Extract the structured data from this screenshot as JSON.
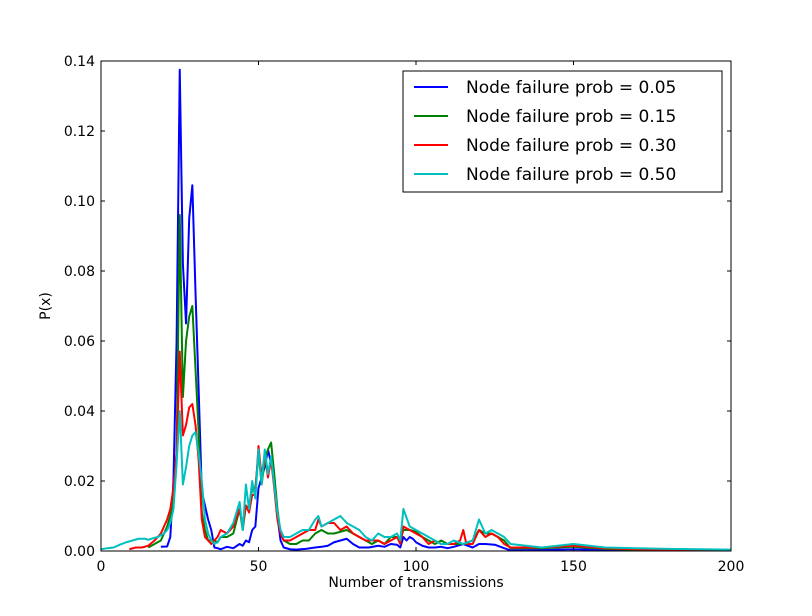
{
  "chart_data": {
    "type": "line",
    "title": "",
    "xlabel": "Number of transmissions",
    "ylabel": "P(x)",
    "xlim": [
      0,
      200
    ],
    "ylim": [
      0,
      0.14
    ],
    "xticks": [
      0,
      50,
      100,
      150,
      200
    ],
    "xtick_labels": [
      "0",
      "50",
      "100",
      "150",
      "200"
    ],
    "yticks": [
      0,
      0.02,
      0.04,
      0.06,
      0.08,
      0.1,
      0.12,
      0.14
    ],
    "ytick_labels": [
      "0.00",
      "0.02",
      "0.04",
      "0.06",
      "0.08",
      "0.10",
      "0.12",
      "0.14"
    ],
    "grid": false,
    "legend_position": "top-right",
    "series": [
      {
        "name": "Node failure prob = 0.05",
        "color": "#0000ff",
        "x": [
          19,
          21,
          22,
          23,
          24,
          25,
          26,
          27,
          28,
          29,
          30,
          31,
          32,
          33,
          34,
          35,
          36,
          37,
          38,
          40,
          42,
          44,
          45,
          46,
          47,
          48,
          49,
          50,
          51,
          52,
          53,
          54,
          55,
          56,
          57,
          58,
          60,
          62,
          65,
          68,
          70,
          72,
          74,
          76,
          78,
          80,
          82,
          85,
          88,
          90,
          92,
          94,
          95,
          96,
          97,
          98,
          99,
          100,
          102,
          104,
          106,
          108,
          110,
          112,
          115,
          118,
          120,
          122,
          125,
          128,
          130,
          140,
          150,
          160,
          170,
          180,
          190,
          200
        ],
        "values": [
          0.0012,
          0.0013,
          0.004,
          0.02,
          0.06,
          0.1375,
          0.082,
          0.065,
          0.095,
          0.1045,
          0.074,
          0.046,
          0.017,
          0.013,
          0.009,
          0.006,
          0.001,
          0.0008,
          0.0005,
          0.0012,
          0.0008,
          0.002,
          0.0015,
          0.003,
          0.0025,
          0.006,
          0.007,
          0.018,
          0.021,
          0.024,
          0.029,
          0.025,
          0.021,
          0.01,
          0.003,
          0.001,
          0.0005,
          0.0004,
          0.0006,
          0.001,
          0.0012,
          0.0015,
          0.0025,
          0.003,
          0.0035,
          0.002,
          0.001,
          0.001,
          0.0015,
          0.0012,
          0.002,
          0.0018,
          0.001,
          0.004,
          0.003,
          0.004,
          0.0035,
          0.0025,
          0.0015,
          0.001,
          0.001,
          0.0012,
          0.0008,
          0.0012,
          0.002,
          0.001,
          0.002,
          0.002,
          0.0018,
          0.0008,
          0.0002,
          0.0003,
          0.0005,
          0.0003,
          0.0003,
          0.0002,
          0.0003,
          0.0002
        ]
      },
      {
        "name": "Node failure prob = 0.15",
        "color": "#008000",
        "x": [
          15,
          17,
          19,
          21,
          22,
          23,
          24,
          25,
          26,
          27,
          28,
          29,
          30,
          31,
          32,
          33,
          34,
          35,
          36,
          37,
          38,
          40,
          42,
          44,
          45,
          46,
          47,
          48,
          49,
          50,
          51,
          52,
          53,
          54,
          55,
          56,
          57,
          58,
          60,
          62,
          64,
          66,
          68,
          70,
          72,
          74,
          76,
          78,
          80,
          82,
          84,
          86,
          88,
          90,
          92,
          94,
          95,
          96,
          98,
          100,
          102,
          104,
          106,
          108,
          110,
          112,
          115,
          118,
          120,
          122,
          124,
          126,
          128,
          130,
          140,
          150,
          160,
          170,
          180,
          190,
          200
        ],
        "values": [
          0.001,
          0.002,
          0.003,
          0.007,
          0.01,
          0.015,
          0.028,
          0.096,
          0.044,
          0.06,
          0.067,
          0.07,
          0.052,
          0.034,
          0.011,
          0.006,
          0.003,
          0.003,
          0.003,
          0.0025,
          0.004,
          0.004,
          0.005,
          0.012,
          0.006,
          0.013,
          0.012,
          0.018,
          0.018,
          0.028,
          0.019,
          0.026,
          0.029,
          0.031,
          0.022,
          0.012,
          0.005,
          0.003,
          0.002,
          0.002,
          0.003,
          0.003,
          0.005,
          0.006,
          0.005,
          0.005,
          0.0055,
          0.006,
          0.005,
          0.004,
          0.003,
          0.002,
          0.003,
          0.002,
          0.004,
          0.004,
          0.003,
          0.006,
          0.006,
          0.0055,
          0.004,
          0.003,
          0.002,
          0.003,
          0.002,
          0.002,
          0.002,
          0.003,
          0.006,
          0.005,
          0.005,
          0.004,
          0.003,
          0.0008,
          0.0008,
          0.0012,
          0.0006,
          0.0004,
          0.0004,
          0.0004,
          0.0003
        ]
      },
      {
        "name": "Node failure prob = 0.30",
        "color": "#ff0000",
        "x": [
          9,
          11,
          13,
          15,
          17,
          19,
          20,
          21,
          22,
          23,
          24,
          25,
          26,
          27,
          28,
          29,
          30,
          31,
          32,
          33,
          34,
          35,
          36,
          37,
          38,
          40,
          42,
          44,
          45,
          46,
          47,
          48,
          49,
          50,
          51,
          52,
          53,
          54,
          55,
          56,
          57,
          58,
          60,
          62,
          64,
          66,
          68,
          69,
          70,
          72,
          74,
          76,
          78,
          80,
          82,
          84,
          86,
          88,
          90,
          92,
          94,
          95,
          96,
          98,
          100,
          102,
          104,
          106,
          108,
          110,
          112,
          114,
          115,
          116,
          118,
          120,
          122,
          124,
          126,
          128,
          130,
          140,
          150,
          160,
          170,
          180,
          190,
          200
        ],
        "values": [
          0.0005,
          0.001,
          0.001,
          0.0015,
          0.003,
          0.005,
          0.007,
          0.009,
          0.012,
          0.018,
          0.028,
          0.057,
          0.033,
          0.036,
          0.041,
          0.042,
          0.036,
          0.026,
          0.009,
          0.004,
          0.003,
          0.002,
          0.003,
          0.004,
          0.006,
          0.005,
          0.007,
          0.012,
          0.007,
          0.013,
          0.011,
          0.016,
          0.016,
          0.03,
          0.021,
          0.028,
          0.021,
          0.026,
          0.018,
          0.009,
          0.005,
          0.003,
          0.003,
          0.004,
          0.005,
          0.006,
          0.006,
          0.009,
          0.007,
          0.008,
          0.008,
          0.006,
          0.007,
          0.005,
          0.004,
          0.003,
          0.003,
          0.003,
          0.002,
          0.003,
          0.004,
          0.002,
          0.007,
          0.006,
          0.005,
          0.004,
          0.002,
          0.003,
          0.002,
          0.002,
          0.002,
          0.003,
          0.006,
          0.002,
          0.002,
          0.006,
          0.004,
          0.005,
          0.004,
          0.002,
          0.001,
          0.001,
          0.0015,
          0.0008,
          0.0005,
          0.0004,
          0.0004,
          0.0003
        ]
      },
      {
        "name": "Node failure prob = 0.50",
        "color": "#00bfbf",
        "x": [
          0,
          2,
          4,
          6,
          8,
          10,
          12,
          14,
          15,
          16,
          18,
          20,
          21,
          22,
          23,
          24,
          25,
          26,
          27,
          28,
          29,
          30,
          31,
          32,
          33,
          34,
          35,
          36,
          37,
          38,
          40,
          42,
          44,
          45,
          46,
          47,
          48,
          49,
          50,
          51,
          52,
          53,
          54,
          55,
          56,
          57,
          58,
          60,
          62,
          64,
          66,
          68,
          69,
          70,
          72,
          74,
          76,
          78,
          80,
          82,
          84,
          86,
          88,
          90,
          92,
          94,
          95,
          96,
          98,
          100,
          102,
          104,
          106,
          108,
          110,
          112,
          115,
          118,
          120,
          122,
          124,
          126,
          128,
          130,
          140,
          150,
          160,
          170,
          180,
          190,
          200
        ],
        "values": [
          0.0005,
          0.0008,
          0.001,
          0.0018,
          0.0025,
          0.003,
          0.0035,
          0.0035,
          0.0032,
          0.0035,
          0.004,
          0.005,
          0.006,
          0.008,
          0.012,
          0.025,
          0.04,
          0.019,
          0.024,
          0.03,
          0.033,
          0.034,
          0.028,
          0.02,
          0.009,
          0.005,
          0.003,
          0.002,
          0.0025,
          0.004,
          0.005,
          0.008,
          0.014,
          0.006,
          0.019,
          0.012,
          0.02,
          0.015,
          0.029,
          0.019,
          0.029,
          0.022,
          0.027,
          0.019,
          0.011,
          0.006,
          0.004,
          0.004,
          0.005,
          0.006,
          0.006,
          0.009,
          0.01,
          0.007,
          0.008,
          0.009,
          0.01,
          0.008,
          0.007,
          0.006,
          0.004,
          0.003,
          0.005,
          0.004,
          0.004,
          0.005,
          0.003,
          0.012,
          0.007,
          0.006,
          0.005,
          0.004,
          0.003,
          0.002,
          0.002,
          0.003,
          0.002,
          0.003,
          0.009,
          0.005,
          0.006,
          0.005,
          0.004,
          0.002,
          0.001,
          0.002,
          0.001,
          0.0008,
          0.0006,
          0.0005,
          0.0004
        ]
      }
    ]
  }
}
